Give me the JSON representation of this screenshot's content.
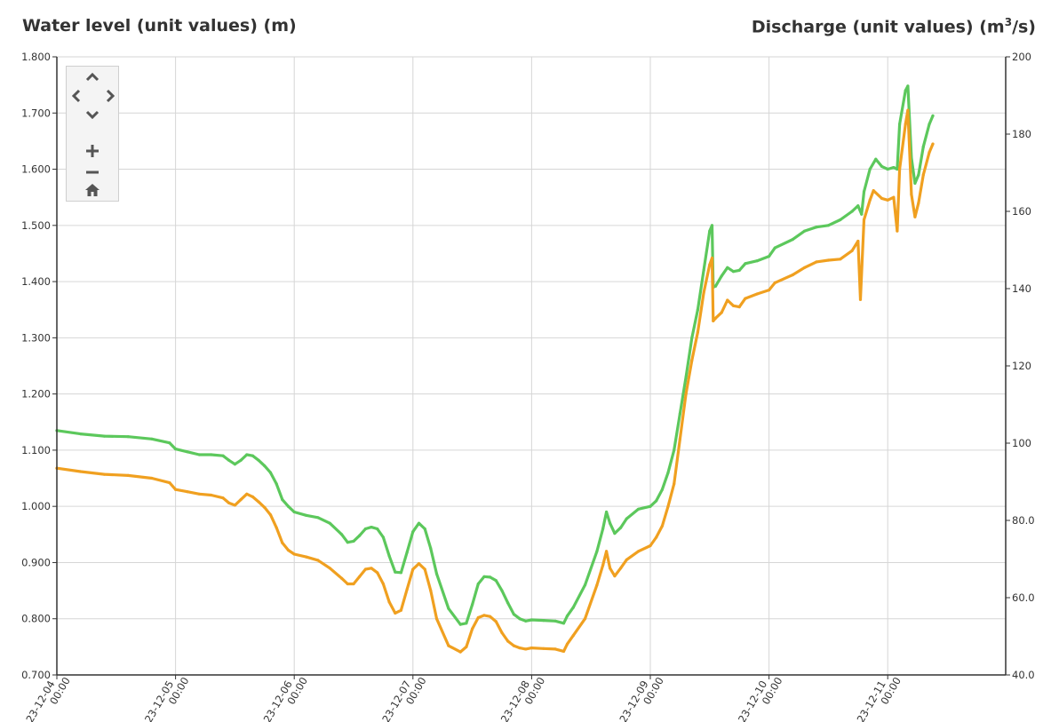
{
  "titles": {
    "left": "Water level (unit values) (m)",
    "right_base": "Discharge (unit values) (m",
    "right_sup": "3",
    "right_tail": "/s)"
  },
  "navigation": {
    "up": "up-arrow-icon",
    "left": "left-arrow-icon",
    "right": "right-arrow-icon",
    "down": "down-arrow-icon",
    "zoom_in": "plus-icon",
    "zoom_out": "minus-icon",
    "home": "home-icon"
  },
  "chart_data": {
    "type": "line",
    "grid": true,
    "x_tick_labels": [
      [
        "23-12-04",
        "00:00"
      ],
      [
        "23-12-05",
        "00:00"
      ],
      [
        "23-12-06",
        "00:00"
      ],
      [
        "23-12-07",
        "00:00"
      ],
      [
        "23-12-08",
        "00:00"
      ],
      [
        "23-12-09",
        "00:00"
      ],
      [
        "23-12-10",
        "00:00"
      ],
      [
        "23-12-11",
        "00:00"
      ]
    ],
    "x_range_days": [
      0,
      8.0
    ],
    "y_left": {
      "label": "Water level (unit values) (m)",
      "range": [
        0.7,
        1.8
      ],
      "ticks": [
        "0.700",
        "0.800",
        "0.900",
        "1.000",
        "1.100",
        "1.200",
        "1.300",
        "1.400",
        "1.500",
        "1.600",
        "1.700",
        "1.800"
      ]
    },
    "y_right": {
      "label": "Discharge (unit values) (m3/s)",
      "range": [
        40,
        200
      ],
      "ticks": [
        "40.0",
        "60.0",
        "80.0",
        "100",
        "120",
        "140",
        "160",
        "180",
        "200"
      ]
    },
    "series": [
      {
        "color": "#5cc85c",
        "axis": "left",
        "points": [
          [
            0.0,
            1.135
          ],
          [
            0.2,
            1.129
          ],
          [
            0.4,
            1.125
          ],
          [
            0.6,
            1.124
          ],
          [
            0.8,
            1.12
          ],
          [
            0.95,
            1.113
          ],
          [
            1.0,
            1.102
          ],
          [
            1.1,
            1.097
          ],
          [
            1.2,
            1.092
          ],
          [
            1.3,
            1.092
          ],
          [
            1.4,
            1.09
          ],
          [
            1.45,
            1.082
          ],
          [
            1.5,
            1.075
          ],
          [
            1.55,
            1.082
          ],
          [
            1.6,
            1.092
          ],
          [
            1.65,
            1.09
          ],
          [
            1.7,
            1.082
          ],
          [
            1.75,
            1.072
          ],
          [
            1.8,
            1.06
          ],
          [
            1.85,
            1.04
          ],
          [
            1.9,
            1.012
          ],
          [
            1.95,
            1.0
          ],
          [
            2.0,
            0.99
          ],
          [
            2.1,
            0.984
          ],
          [
            2.2,
            0.98
          ],
          [
            2.3,
            0.97
          ],
          [
            2.4,
            0.95
          ],
          [
            2.45,
            0.936
          ],
          [
            2.5,
            0.938
          ],
          [
            2.55,
            0.948
          ],
          [
            2.6,
            0.96
          ],
          [
            2.65,
            0.963
          ],
          [
            2.7,
            0.96
          ],
          [
            2.75,
            0.945
          ],
          [
            2.8,
            0.912
          ],
          [
            2.85,
            0.883
          ],
          [
            2.9,
            0.882
          ],
          [
            2.95,
            0.918
          ],
          [
            3.0,
            0.955
          ],
          [
            3.05,
            0.97
          ],
          [
            3.1,
            0.96
          ],
          [
            3.15,
            0.925
          ],
          [
            3.2,
            0.88
          ],
          [
            3.3,
            0.818
          ],
          [
            3.4,
            0.79
          ],
          [
            3.45,
            0.792
          ],
          [
            3.5,
            0.825
          ],
          [
            3.55,
            0.862
          ],
          [
            3.6,
            0.875
          ],
          [
            3.65,
            0.874
          ],
          [
            3.7,
            0.868
          ],
          [
            3.75,
            0.85
          ],
          [
            3.8,
            0.828
          ],
          [
            3.85,
            0.808
          ],
          [
            3.9,
            0.8
          ],
          [
            3.95,
            0.796
          ],
          [
            4.0,
            0.798
          ],
          [
            4.1,
            0.797
          ],
          [
            4.2,
            0.796
          ],
          [
            4.27,
            0.792
          ],
          [
            4.3,
            0.805
          ],
          [
            4.35,
            0.82
          ],
          [
            4.45,
            0.86
          ],
          [
            4.55,
            0.92
          ],
          [
            4.6,
            0.96
          ],
          [
            4.63,
            0.99
          ],
          [
            4.66,
            0.97
          ],
          [
            4.7,
            0.952
          ],
          [
            4.75,
            0.962
          ],
          [
            4.8,
            0.978
          ],
          [
            4.9,
            0.995
          ],
          [
            5.0,
            1.0
          ],
          [
            5.05,
            1.01
          ],
          [
            5.1,
            1.03
          ],
          [
            5.15,
            1.06
          ],
          [
            5.2,
            1.1
          ],
          [
            5.25,
            1.165
          ],
          [
            5.3,
            1.23
          ],
          [
            5.35,
            1.3
          ],
          [
            5.4,
            1.35
          ],
          [
            5.45,
            1.42
          ],
          [
            5.5,
            1.49
          ],
          [
            5.52,
            1.5
          ],
          [
            5.53,
            1.39
          ],
          [
            5.55,
            1.392
          ],
          [
            5.6,
            1.41
          ],
          [
            5.65,
            1.425
          ],
          [
            5.7,
            1.418
          ],
          [
            5.75,
            1.42
          ],
          [
            5.8,
            1.432
          ],
          [
            5.9,
            1.437
          ],
          [
            6.0,
            1.445
          ],
          [
            6.05,
            1.46
          ],
          [
            6.2,
            1.475
          ],
          [
            6.3,
            1.49
          ],
          [
            6.4,
            1.497
          ],
          [
            6.5,
            1.5
          ],
          [
            6.6,
            1.51
          ],
          [
            6.7,
            1.525
          ],
          [
            6.75,
            1.535
          ],
          [
            6.78,
            1.52
          ],
          [
            6.8,
            1.56
          ],
          [
            6.85,
            1.6
          ],
          [
            6.9,
            1.618
          ],
          [
            6.95,
            1.605
          ],
          [
            7.0,
            1.6
          ],
          [
            7.05,
            1.603
          ],
          [
            7.08,
            1.6
          ],
          [
            7.1,
            1.68
          ],
          [
            7.15,
            1.74
          ],
          [
            7.17,
            1.748
          ],
          [
            7.2,
            1.62
          ],
          [
            7.23,
            1.575
          ],
          [
            7.26,
            1.59
          ],
          [
            7.3,
            1.64
          ],
          [
            7.35,
            1.68
          ],
          [
            7.38,
            1.695
          ]
        ]
      },
      {
        "color": "#f0a020",
        "axis": "left",
        "points": [
          [
            0.0,
            1.068
          ],
          [
            0.2,
            1.062
          ],
          [
            0.4,
            1.057
          ],
          [
            0.6,
            1.055
          ],
          [
            0.8,
            1.05
          ],
          [
            0.95,
            1.042
          ],
          [
            1.0,
            1.03
          ],
          [
            1.1,
            1.026
          ],
          [
            1.2,
            1.022
          ],
          [
            1.3,
            1.02
          ],
          [
            1.4,
            1.015
          ],
          [
            1.45,
            1.006
          ],
          [
            1.5,
            1.002
          ],
          [
            1.55,
            1.012
          ],
          [
            1.6,
            1.022
          ],
          [
            1.65,
            1.017
          ],
          [
            1.7,
            1.008
          ],
          [
            1.75,
            0.998
          ],
          [
            1.8,
            0.985
          ],
          [
            1.85,
            0.962
          ],
          [
            1.9,
            0.935
          ],
          [
            1.95,
            0.922
          ],
          [
            2.0,
            0.915
          ],
          [
            2.1,
            0.91
          ],
          [
            2.2,
            0.904
          ],
          [
            2.3,
            0.89
          ],
          [
            2.4,
            0.872
          ],
          [
            2.45,
            0.862
          ],
          [
            2.5,
            0.862
          ],
          [
            2.55,
            0.875
          ],
          [
            2.6,
            0.888
          ],
          [
            2.65,
            0.89
          ],
          [
            2.7,
            0.882
          ],
          [
            2.75,
            0.862
          ],
          [
            2.8,
            0.83
          ],
          [
            2.85,
            0.81
          ],
          [
            2.9,
            0.815
          ],
          [
            2.95,
            0.852
          ],
          [
            3.0,
            0.888
          ],
          [
            3.05,
            0.898
          ],
          [
            3.1,
            0.888
          ],
          [
            3.15,
            0.85
          ],
          [
            3.2,
            0.8
          ],
          [
            3.3,
            0.752
          ],
          [
            3.4,
            0.741
          ],
          [
            3.45,
            0.75
          ],
          [
            3.5,
            0.782
          ],
          [
            3.55,
            0.802
          ],
          [
            3.6,
            0.806
          ],
          [
            3.65,
            0.804
          ],
          [
            3.7,
            0.795
          ],
          [
            3.75,
            0.775
          ],
          [
            3.8,
            0.76
          ],
          [
            3.85,
            0.752
          ],
          [
            3.9,
            0.748
          ],
          [
            3.95,
            0.746
          ],
          [
            4.0,
            0.748
          ],
          [
            4.1,
            0.747
          ],
          [
            4.2,
            0.746
          ],
          [
            4.27,
            0.742
          ],
          [
            4.3,
            0.755
          ],
          [
            4.35,
            0.77
          ],
          [
            4.45,
            0.8
          ],
          [
            4.55,
            0.86
          ],
          [
            4.6,
            0.895
          ],
          [
            4.63,
            0.92
          ],
          [
            4.66,
            0.89
          ],
          [
            4.7,
            0.876
          ],
          [
            4.75,
            0.89
          ],
          [
            4.8,
            0.905
          ],
          [
            4.9,
            0.92
          ],
          [
            5.0,
            0.93
          ],
          [
            5.05,
            0.945
          ],
          [
            5.1,
            0.965
          ],
          [
            5.15,
            1.0
          ],
          [
            5.2,
            1.04
          ],
          [
            5.25,
            1.12
          ],
          [
            5.3,
            1.2
          ],
          [
            5.35,
            1.26
          ],
          [
            5.4,
            1.31
          ],
          [
            5.45,
            1.38
          ],
          [
            5.5,
            1.43
          ],
          [
            5.52,
            1.442
          ],
          [
            5.53,
            1.33
          ],
          [
            5.55,
            1.335
          ],
          [
            5.6,
            1.345
          ],
          [
            5.65,
            1.367
          ],
          [
            5.7,
            1.357
          ],
          [
            5.75,
            1.355
          ],
          [
            5.8,
            1.37
          ],
          [
            5.9,
            1.378
          ],
          [
            6.0,
            1.385
          ],
          [
            6.05,
            1.398
          ],
          [
            6.2,
            1.412
          ],
          [
            6.3,
            1.425
          ],
          [
            6.4,
            1.435
          ],
          [
            6.5,
            1.438
          ],
          [
            6.6,
            1.44
          ],
          [
            6.7,
            1.455
          ],
          [
            6.75,
            1.472
          ],
          [
            6.77,
            1.368
          ],
          [
            6.8,
            1.51
          ],
          [
            6.85,
            1.545
          ],
          [
            6.88,
            1.562
          ],
          [
            6.95,
            1.548
          ],
          [
            7.0,
            1.545
          ],
          [
            7.05,
            1.55
          ],
          [
            7.08,
            1.49
          ],
          [
            7.1,
            1.6
          ],
          [
            7.15,
            1.68
          ],
          [
            7.17,
            1.705
          ],
          [
            7.2,
            1.555
          ],
          [
            7.23,
            1.515
          ],
          [
            7.26,
            1.54
          ],
          [
            7.3,
            1.59
          ],
          [
            7.35,
            1.63
          ],
          [
            7.38,
            1.645
          ]
        ]
      }
    ]
  }
}
